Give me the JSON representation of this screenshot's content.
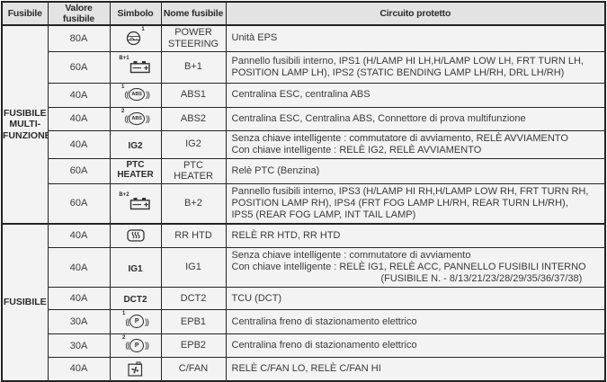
{
  "header": {
    "fuse": "Fusibile",
    "value": "Valore fusibile",
    "symbol": "Simbolo",
    "name": "Nome fusibile",
    "circuit": "Circuito protetto"
  },
  "sections": [
    {
      "label_lines": [
        "FUSIBILE",
        "MULTI-",
        "FUNZIONE"
      ],
      "row_count": 7
    },
    {
      "label_lines": [
        "FUSIBILE"
      ],
      "row_count": 6
    }
  ],
  "rows": [
    {
      "value": "80A",
      "symbol": {
        "kind": "icon",
        "icon": "steering-wheel-icon",
        "sup": "1",
        "sup_pos": "right"
      },
      "name": "POWER STEERING",
      "circuit": [
        "Unità EPS"
      ]
    },
    {
      "value": "60A",
      "symbol": {
        "kind": "icon",
        "icon": "battery-icon",
        "sup": "B+1",
        "sup_pos": "left"
      },
      "name": "B+1",
      "circuit": [
        "Pannello fusibili interno, IPS1 (H/LAMP HI LH,H/LAMP LOW LH, FRT TURN LH,",
        "POSITION LAMP LH), IPS2 (STATIC BENDING LAMP LH/RH, DRL LH/RH)"
      ]
    },
    {
      "value": "40A",
      "symbol": {
        "kind": "icon",
        "icon": "abs-icon",
        "sup": "1",
        "sup_pos": "left"
      },
      "name": "ABS1",
      "circuit": [
        "Centralina ESC, centralina ABS"
      ]
    },
    {
      "value": "40A",
      "symbol": {
        "kind": "icon",
        "icon": "abs-icon",
        "sup": "2",
        "sup_pos": "left"
      },
      "name": "ABS2",
      "circuit": [
        "Centralina ESC, Centralina ABS, Connettore di prova multifunzione"
      ]
    },
    {
      "value": "40A",
      "symbol": {
        "kind": "text",
        "label": "IG2"
      },
      "name": "IG2",
      "circuit": [
        "Senza chiave intelligente : commutatore di avviamento, RELÈ AVVIAMENTO",
        "Con chiave intelligente : RELÈ IG2, RELÈ AVVIAMENTO"
      ]
    },
    {
      "value": "60A",
      "symbol": {
        "kind": "text",
        "label": "PTC HEATER"
      },
      "name": "PTC HEATER",
      "circuit": [
        "Relè PTC (Benzina)"
      ]
    },
    {
      "value": "60A",
      "symbol": {
        "kind": "icon",
        "icon": "battery-icon",
        "sup": "B+2",
        "sup_pos": "left"
      },
      "name": "B+2",
      "circuit": [
        "Pannello fusibili interno, IPS3 (H/LAMP HI RH,H/LAMP LOW RH, FRT TURN RH,",
        "POSITION LAMP RH), IPS4 (FRT FOG LAMP LH/RH, REAR TURN LH/RH),",
        "IPS5 (REAR FOG LAMP, INT TAIL LAMP)"
      ]
    },
    {
      "value": "40A",
      "symbol": {
        "kind": "icon",
        "icon": "rear-defrost-icon"
      },
      "name": "RR HTD",
      "circuit": [
        "RELÈ RR HTD, RR HTD"
      ]
    },
    {
      "value": "40A",
      "symbol": {
        "kind": "text",
        "label": "IG1"
      },
      "name": "IG1",
      "circuit": [
        "Senza chiave intelligente : commutatore di avviamento",
        "Con chiave intelligente : RELÈ IG1, RELÈ ACC, PANNELLO FUSIBILI INTERNO",
        {
          "text": "(FUSIBILE N. - 8/13/21/23/28/29/35/36/37/38)",
          "indent": true
        }
      ]
    },
    {
      "value": "40A",
      "symbol": {
        "kind": "text",
        "label": "DCT2"
      },
      "name": "DCT2",
      "circuit": [
        "TCU (DCT)"
      ]
    },
    {
      "value": "30A",
      "symbol": {
        "kind": "icon",
        "icon": "parking-brake-icon",
        "sup": "1",
        "sup_pos": "left"
      },
      "name": "EPB1",
      "circuit": [
        "Centralina freno di stazionamento elettrico"
      ]
    },
    {
      "value": "30A",
      "symbol": {
        "kind": "icon",
        "icon": "parking-brake-icon",
        "sup": "2",
        "sup_pos": "left"
      },
      "name": "EPB2",
      "circuit": [
        "Centralina freno di stazionamento elettrico"
      ]
    },
    {
      "value": "40A",
      "symbol": {
        "kind": "icon",
        "icon": "cooling-fan-icon"
      },
      "name": "C/FAN",
      "circuit": [
        "RELÈ C/FAN LO, RELÈ C/FAN HI"
      ]
    }
  ],
  "icon_labels": {
    "abs": "ABS",
    "parking_brake": "P"
  },
  "colors": {
    "header_bg": "#e3e3e3",
    "cell_bg": "#f3f3f3",
    "border": "#242424",
    "text": "#3a3a3a"
  }
}
